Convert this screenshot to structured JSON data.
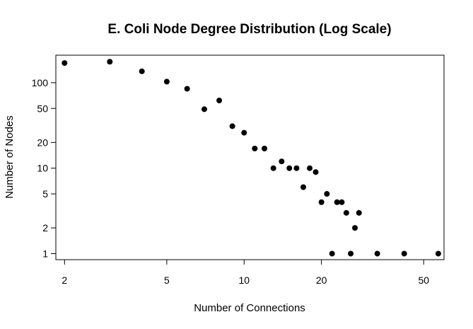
{
  "chart_data": {
    "type": "scatter",
    "title": "E. Coli Node Degree Distribution (Log Scale)",
    "xlabel": "Number of Connections",
    "ylabel": "Number of Nodes",
    "x_scale": "log",
    "y_scale": "log",
    "xlim": [
      1.85,
      60
    ],
    "ylim": [
      0.85,
      210
    ],
    "x_ticks": [
      2,
      5,
      10,
      20,
      50
    ],
    "y_ticks": [
      1,
      2,
      5,
      10,
      20,
      50,
      100
    ],
    "grid": false,
    "legend": "none",
    "point_color": "#000000",
    "points": [
      {
        "x": 2,
        "y": 170
      },
      {
        "x": 3,
        "y": 176
      },
      {
        "x": 4,
        "y": 136
      },
      {
        "x": 5,
        "y": 103
      },
      {
        "x": 6,
        "y": 85
      },
      {
        "x": 7,
        "y": 49
      },
      {
        "x": 8,
        "y": 62
      },
      {
        "x": 9,
        "y": 31
      },
      {
        "x": 10,
        "y": 26
      },
      {
        "x": 11,
        "y": 17
      },
      {
        "x": 12,
        "y": 17
      },
      {
        "x": 13,
        "y": 10
      },
      {
        "x": 14,
        "y": 12
      },
      {
        "x": 15,
        "y": 10
      },
      {
        "x": 16,
        "y": 10
      },
      {
        "x": 17,
        "y": 6
      },
      {
        "x": 18,
        "y": 10
      },
      {
        "x": 19,
        "y": 9
      },
      {
        "x": 20,
        "y": 4
      },
      {
        "x": 21,
        "y": 5
      },
      {
        "x": 22,
        "y": 1
      },
      {
        "x": 23,
        "y": 4
      },
      {
        "x": 24,
        "y": 4
      },
      {
        "x": 25,
        "y": 3
      },
      {
        "x": 26,
        "y": 1
      },
      {
        "x": 27,
        "y": 2
      },
      {
        "x": 28,
        "y": 3
      },
      {
        "x": 33,
        "y": 1
      },
      {
        "x": 42,
        "y": 1
      },
      {
        "x": 57,
        "y": 1
      }
    ]
  }
}
